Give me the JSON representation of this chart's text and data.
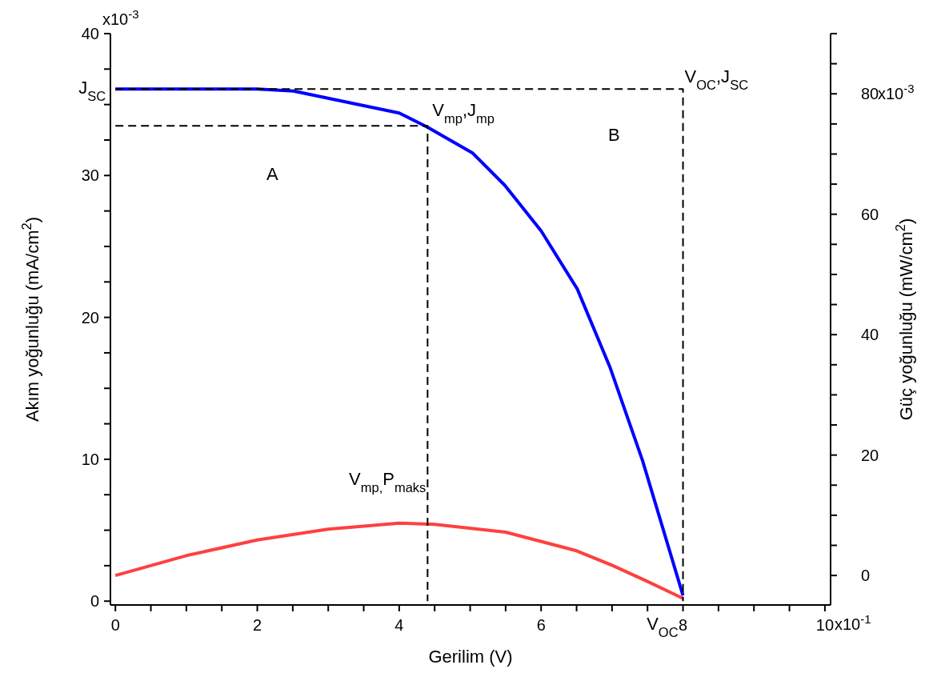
{
  "chart_data": {
    "type": "line",
    "xlabel": "Gerilim (V)",
    "ylabel": "Akım yoğunluğu (mA/cm$^{2}$)",
    "y2label": "Güç yoğunluğu (mW/cm$^{2}$)",
    "xlim": [
      -0.07,
      10.08
    ],
    "xticks": [
      0,
      {
        "value": 0.5,
        "label": null
      },
      {
        "value": 1,
        "label": null
      },
      {
        "value": 1.5,
        "label": null
      },
      2,
      {
        "value": 2.5,
        "label": null
      },
      {
        "value": 3,
        "label": null
      },
      {
        "value": 3.5,
        "label": null
      },
      4,
      {
        "value": 4.5,
        "label": null
      },
      {
        "value": 5,
        "label": null
      },
      {
        "value": 5.5,
        "label": null
      },
      6,
      {
        "value": 6.5,
        "label": null
      },
      {
        "value": 7,
        "label": null
      },
      {
        "value": 7.5,
        "label": null
      },
      8,
      {
        "value": 8.5,
        "label": null
      },
      {
        "value": 9,
        "label": null
      },
      {
        "value": 9.5,
        "label": null
      },
      10
    ],
    "ylim": [
      -0.27,
      40
    ],
    "yticks": [
      0,
      {
        "value": 2.5,
        "label": null
      },
      {
        "value": 5,
        "label": null
      },
      {
        "value": 7.5,
        "label": null
      },
      10,
      {
        "value": 12.5,
        "label": null
      },
      {
        "value": 15,
        "label": null
      },
      {
        "value": 17.5,
        "label": null
      },
      20,
      {
        "value": 22.5,
        "label": null
      },
      {
        "value": 25,
        "label": null
      },
      {
        "value": 27.5,
        "label": null
      },
      30,
      {
        "value": 32.5,
        "label": null
      },
      {
        "value": 35,
        "label": null
      },
      {
        "value": 37.5,
        "label": null
      },
      40
    ],
    "y2lim": [
      -4.9,
      90
    ],
    "y2ticks": [
      0,
      {
        "value": 5,
        "label": null
      },
      {
        "value": 10,
        "label": null
      },
      {
        "value": 15,
        "label": null
      },
      20,
      {
        "value": 25,
        "label": null
      },
      {
        "value": 30,
        "label": null
      },
      {
        "value": 35,
        "label": null
      },
      40,
      {
        "value": 45,
        "label": null
      },
      {
        "value": 50,
        "label": null
      },
      {
        "value": 55,
        "label": null
      },
      60,
      {
        "value": 65,
        "label": null
      },
      {
        "value": 70,
        "label": null
      },
      {
        "value": 75,
        "label": null
      },
      80,
      {
        "value": 85,
        "label": null
      },
      {
        "value": 90,
        "label": null
      }
    ],
    "grid": false,
    "legend": false,
    "marker": "none",
    "line_style": "solid",
    "series": [
      {
        "color": "#0000ff",
        "x": [
          0,
          2,
          2.51,
          4,
          4.4,
          5.03,
          5.49,
          6,
          6.51,
          6.97,
          7.43,
          8
        ],
        "values": [
          36.1,
          36.1,
          35.95,
          34.4,
          33.4,
          31.6,
          29.3,
          26.1,
          22,
          16.5,
          9.9,
          0.4
        ]
      },
      {
        "color": "#ff4040",
        "axis": "y2",
        "x": [
          0,
          1,
          2,
          3,
          4,
          4.5,
          5.5,
          6.5,
          7,
          7.5,
          8
        ],
        "values": [
          0,
          3.3,
          5.9,
          7.7,
          8.7,
          8.5,
          7.2,
          4.1,
          1.7,
          -1,
          -3.8
        ]
      },
      {
        "color": "#000000",
        "line_style": "dashed",
        "x": [
          0,
          8,
          8
        ],
        "values": [
          36.1,
          36.1,
          0
        ]
      },
      {
        "color": "#000000",
        "line_style": "dashed",
        "x": [
          0,
          4.4,
          4.4
        ],
        "values": [
          33.5,
          33.5,
          0
        ]
      }
    ],
    "annotations": [
      {
        "text": "J$_{SC}$",
        "x": 0,
        "y": 36.1
      },
      {
        "text": "V$_{OC}$,J$_{SC}$",
        "x": 8,
        "y": 36.1
      },
      {
        "text": "V$_{mp}$,J$_{mp}$",
        "x": 4.4,
        "y": 33.5
      },
      {
        "text": "V$_{mp,}$P$_{maks}$",
        "x": 4.4,
        "y": 5.5
      },
      {
        "text": "V$_{OC}$",
        "x": 8,
        "y": 0
      },
      "A",
      "B",
      "x10$^{-1}$",
      "x10$^{-3}$",
      "x10$^{-3}$"
    ]
  }
}
